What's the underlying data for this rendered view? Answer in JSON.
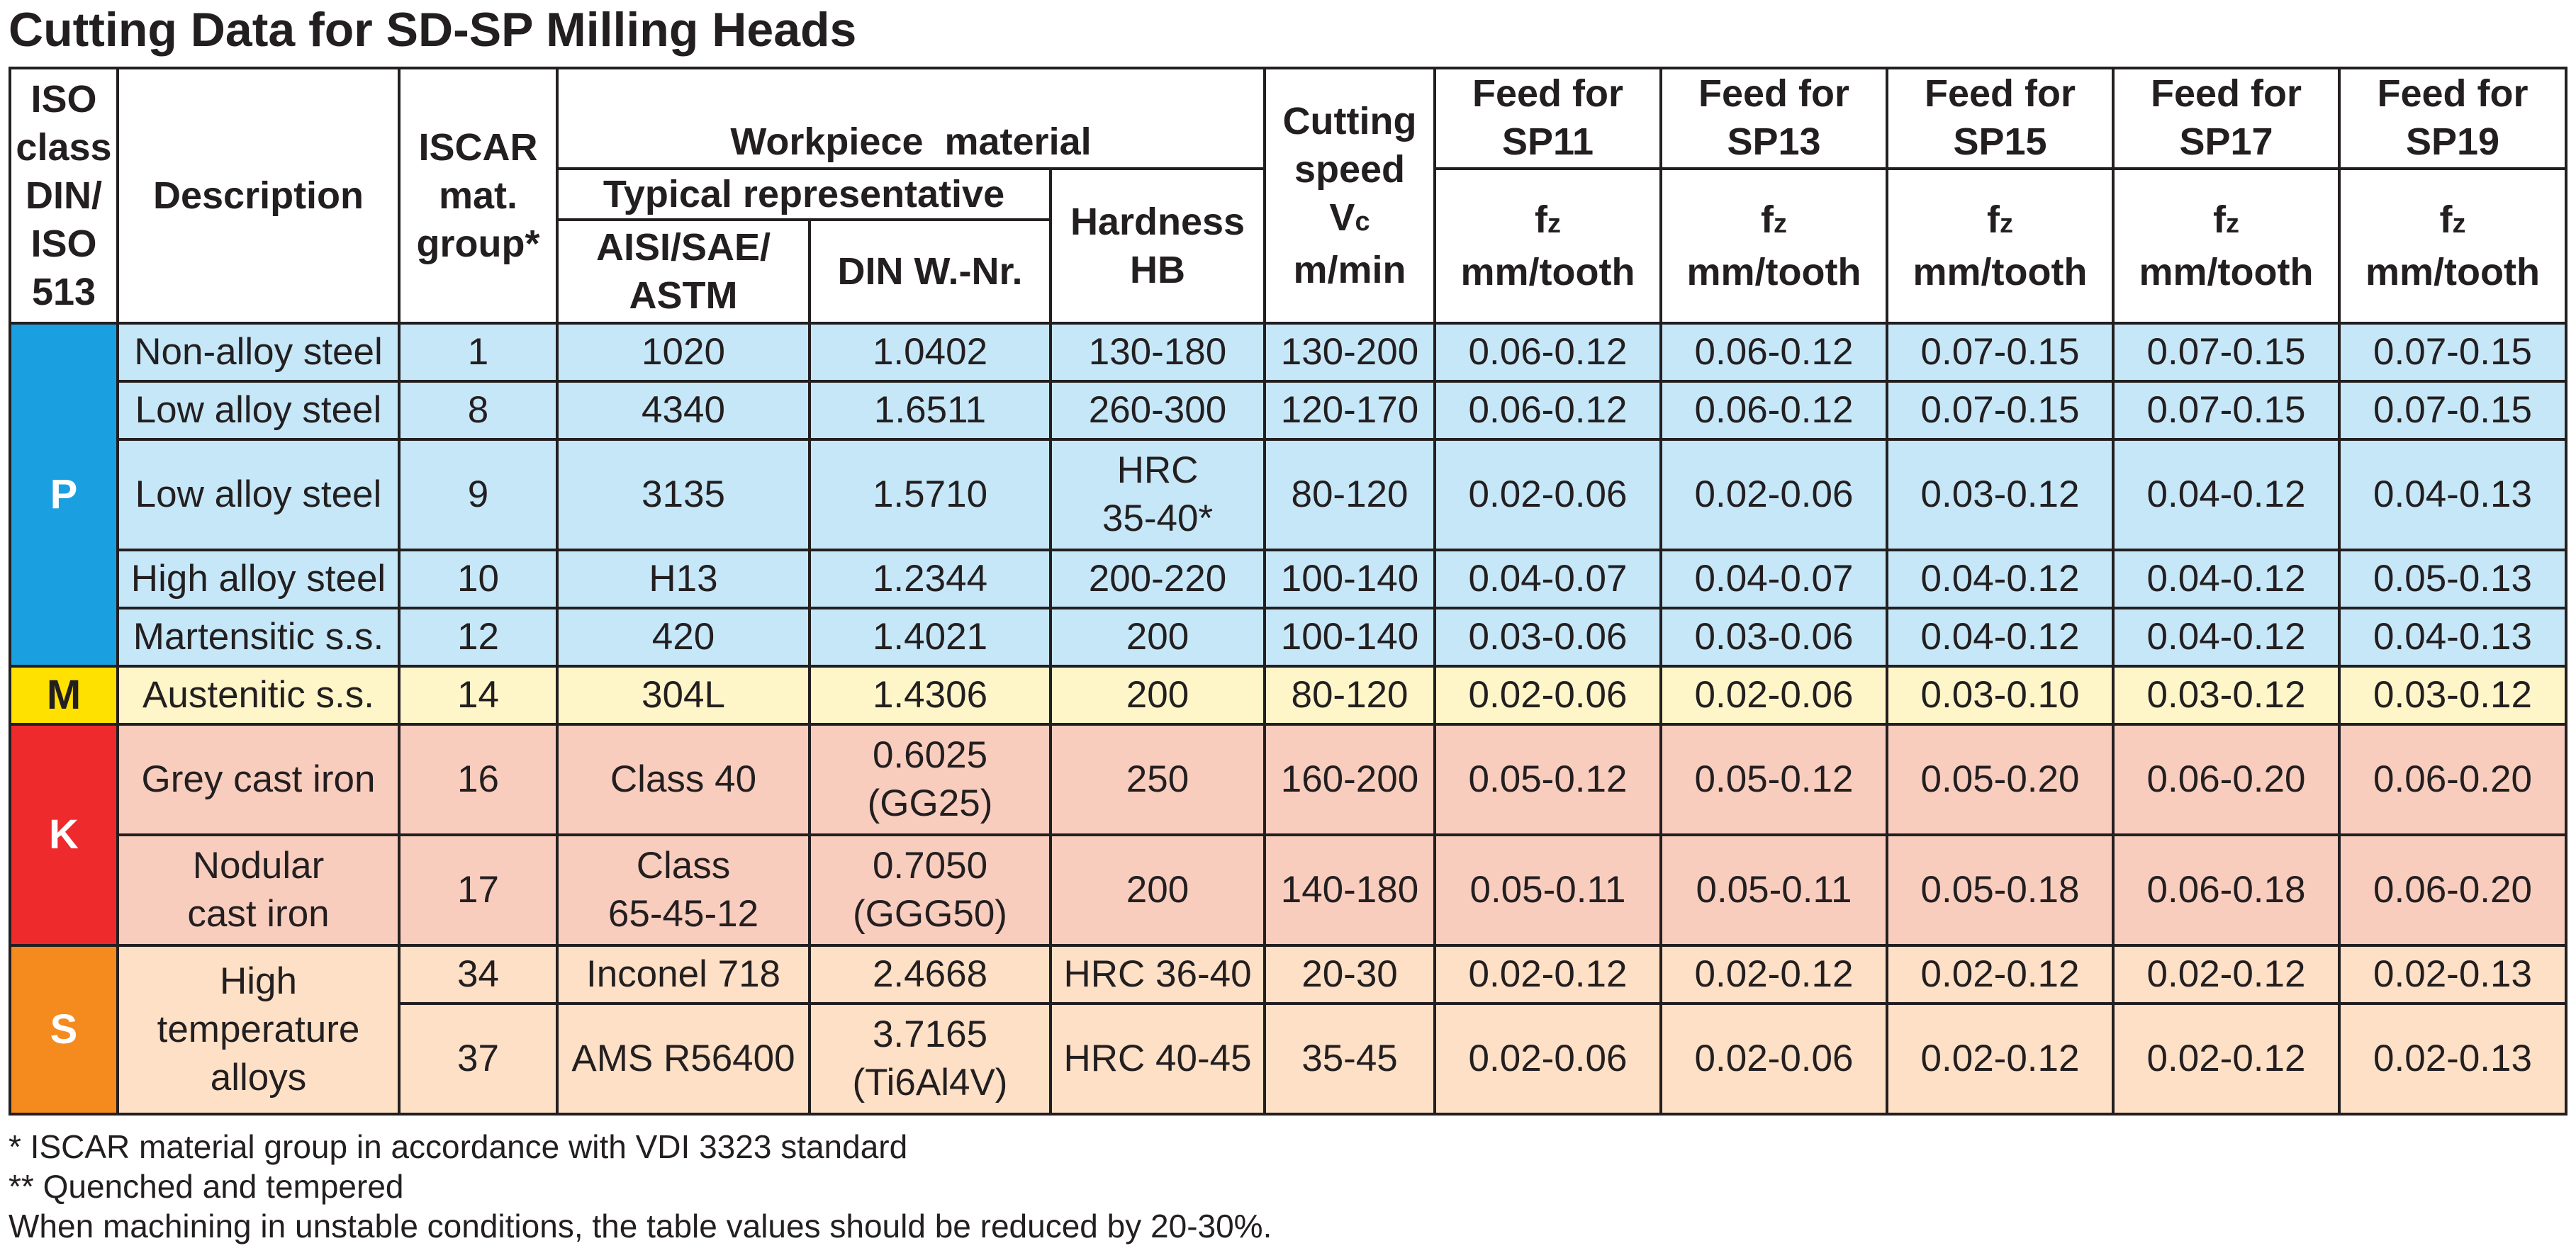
{
  "title": "Cutting Data for SD-SP Milling Heads",
  "colors": {
    "P": "#c6e7f8",
    "P_iso": "#1aa0e0",
    "M": "#fef6c9",
    "M_iso": "#ffe100",
    "K": "#f9cdbe",
    "K_iso": "#ee2a2c",
    "S": "#fde0c6",
    "S_iso": "#f58a1f",
    "border": "#231f20"
  },
  "headers": {
    "iso": [
      "ISO",
      "class",
      "DIN/",
      "ISO",
      "513"
    ],
    "description": "Description",
    "iscar": [
      "ISCAR",
      "mat.",
      "group*"
    ],
    "workpiece": "Workpiece  material",
    "typical": "Typical representative",
    "aisi": [
      "AISI/SAE/",
      "ASTM"
    ],
    "din": "DIN W.-Nr.",
    "hardness": [
      "Hardness",
      "HB"
    ],
    "speed": [
      "Cutting",
      "speed",
      "Vc",
      "m/min"
    ],
    "speed_symbol": "V",
    "speed_subscript": "c",
    "feed_groups": [
      {
        "name": [
          "Feed for",
          "SP11"
        ],
        "symbol": "f",
        "subscript": "z",
        "unit": "mm/tooth"
      },
      {
        "name": [
          "Feed for",
          "SP13"
        ],
        "symbol": "f",
        "subscript": "z",
        "unit": "mm/tooth"
      },
      {
        "name": [
          "Feed for",
          "SP15"
        ],
        "symbol": "f",
        "subscript": "z",
        "unit": "mm/tooth"
      },
      {
        "name": [
          "Feed for",
          "SP17"
        ],
        "symbol": "f",
        "subscript": "z",
        "unit": "mm/tooth"
      },
      {
        "name": [
          "Feed for",
          "SP19"
        ],
        "symbol": "f",
        "subscript": "z",
        "unit": "mm/tooth"
      }
    ]
  },
  "groups": [
    {
      "iso": "P",
      "rows": [
        {
          "description": [
            "Non-alloy steel"
          ],
          "iscar": "1",
          "aisi": [
            "1020"
          ],
          "din": [
            "1.0402"
          ],
          "hardness": [
            "130-180"
          ],
          "speed": "130-200",
          "feeds": [
            "0.06-0.12",
            "0.06-0.12",
            "0.07-0.15",
            "0.07-0.15",
            "0.07-0.15"
          ]
        },
        {
          "description": [
            "Low alloy steel"
          ],
          "iscar": "8",
          "aisi": [
            "4340"
          ],
          "din": [
            "1.6511"
          ],
          "hardness": [
            "260-300"
          ],
          "speed": "120-170",
          "feeds": [
            "0.06-0.12",
            "0.06-0.12",
            "0.07-0.15",
            "0.07-0.15",
            "0.07-0.15"
          ]
        },
        {
          "description": [
            "Low alloy steel"
          ],
          "iscar": "9",
          "aisi": [
            "3135"
          ],
          "din": [
            "1.5710"
          ],
          "hardness": [
            "HRC",
            "35-40*"
          ],
          "speed": "80-120",
          "feeds": [
            "0.02-0.06",
            "0.02-0.06",
            "0.03-0.12",
            "0.04-0.12",
            "0.04-0.13"
          ]
        },
        {
          "description": [
            "High alloy steel"
          ],
          "iscar": "10",
          "aisi": [
            "H13"
          ],
          "din": [
            "1.2344"
          ],
          "hardness": [
            "200-220"
          ],
          "speed": "100-140",
          "feeds": [
            "0.04-0.07",
            "0.04-0.07",
            "0.04-0.12",
            "0.04-0.12",
            "0.05-0.13"
          ]
        },
        {
          "description": [
            "Martensitic s.s."
          ],
          "iscar": "12",
          "aisi": [
            "420"
          ],
          "din": [
            "1.4021"
          ],
          "hardness": [
            "200"
          ],
          "speed": "100-140",
          "feeds": [
            "0.03-0.06",
            "0.03-0.06",
            "0.04-0.12",
            "0.04-0.12",
            "0.04-0.13"
          ]
        }
      ]
    },
    {
      "iso": "M",
      "rows": [
        {
          "description": [
            "Austenitic s.s."
          ],
          "iscar": "14",
          "aisi": [
            "304L"
          ],
          "din": [
            "1.4306"
          ],
          "hardness": [
            "200"
          ],
          "speed": "80-120",
          "feeds": [
            "0.02-0.06",
            "0.02-0.06",
            "0.03-0.10",
            "0.03-0.12",
            "0.03-0.12"
          ]
        }
      ]
    },
    {
      "iso": "K",
      "rows": [
        {
          "description": [
            "Grey cast iron"
          ],
          "iscar": "16",
          "aisi": [
            "Class 40"
          ],
          "din": [
            "0.6025",
            "(GG25)"
          ],
          "hardness": [
            "250"
          ],
          "speed": "160-200",
          "feeds": [
            "0.05-0.12",
            "0.05-0.12",
            "0.05-0.20",
            "0.06-0.20",
            "0.06-0.20"
          ]
        },
        {
          "description": [
            "Nodular",
            "cast iron"
          ],
          "iscar": "17",
          "aisi": [
            "Class",
            "65-45-12"
          ],
          "din": [
            "0.7050",
            "(GGG50)"
          ],
          "hardness": [
            "200"
          ],
          "speed": "140-180",
          "feeds": [
            "0.05-0.11",
            "0.05-0.11",
            "0.05-0.18",
            "0.06-0.18",
            "0.06-0.20"
          ]
        }
      ]
    },
    {
      "iso": "S",
      "description": [
        "High",
        "temperature",
        "alloys"
      ],
      "rows": [
        {
          "iscar": "34",
          "aisi": [
            "Inconel 718"
          ],
          "din": [
            "2.4668"
          ],
          "hardness": [
            "HRC 36-40"
          ],
          "speed": "20-30",
          "feeds": [
            "0.02-0.12",
            "0.02-0.12",
            "0.02-0.12",
            "0.02-0.12",
            "0.02-0.13"
          ]
        },
        {
          "iscar": "37",
          "aisi": [
            "AMS R56400"
          ],
          "din": [
            "3.7165",
            "(Ti6Al4V)"
          ],
          "hardness": [
            "HRC 40-45"
          ],
          "speed": "35-45",
          "feeds": [
            "0.02-0.06",
            "0.02-0.06",
            "0.02-0.12",
            "0.02-0.12",
            "0.02-0.13"
          ]
        }
      ]
    }
  ],
  "footnotes": [
    "* ISCAR material group in accordance with VDI 3323 standard",
    "** Quenched and tempered",
    "When machining in unstable conditions, the table values should be reduced by 20-30%."
  ]
}
